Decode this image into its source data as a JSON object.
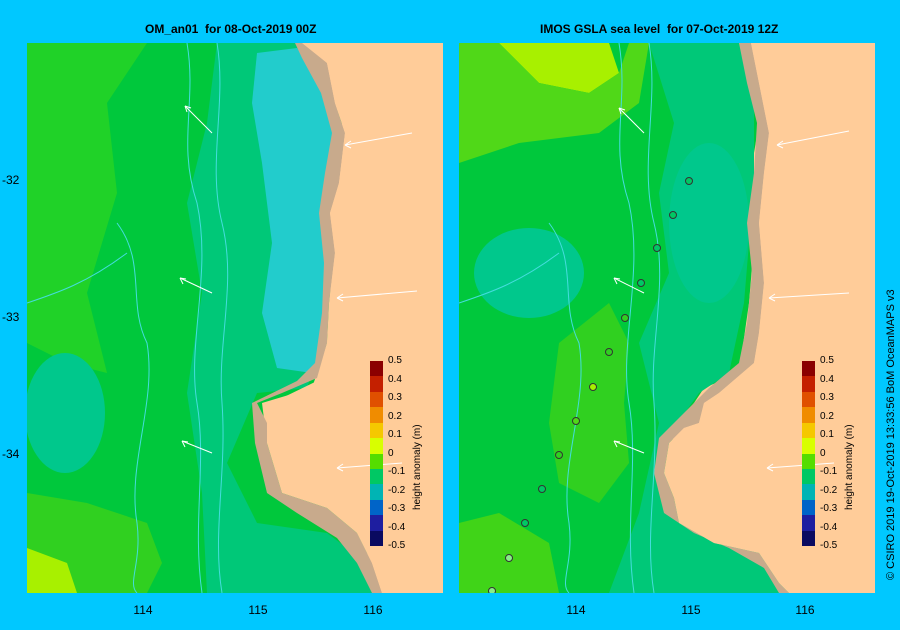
{
  "panels": {
    "left": {
      "title": "OM_an01  for 08-Oct-2019 00Z"
    },
    "right": {
      "title": "IMOS GSLA sea level  for 07-Oct-2019 12Z"
    }
  },
  "axes": {
    "lat_labels": [
      "-32",
      "-33",
      "-34"
    ],
    "lon_labels": [
      "114",
      "115",
      "116"
    ]
  },
  "colorbar": {
    "unit_label": "height anomaly (m)",
    "ticks": [
      "0.5",
      "0.4",
      "0.3",
      "0.2",
      "0.1",
      "0",
      "-0.1",
      "-0.2",
      "-0.3",
      "-0.4",
      "-0.5"
    ],
    "colors": [
      "#8b0000",
      "#c42000",
      "#e05000",
      "#f08c00",
      "#f5c800",
      "#d8ff00",
      "#55dd00",
      "#00c864",
      "#00b4b4",
      "#0064c8",
      "#1e1ea0",
      "#0a0a60"
    ]
  },
  "credit": "© CSIRO 2019   19-Oct-2019 13:33:56 BoM OceanMAPS v3",
  "colors": {
    "background": "#00c8ff",
    "land": "#ffcc99",
    "shelf": "#c8aa8c",
    "isobath": "#44dddd"
  }
}
